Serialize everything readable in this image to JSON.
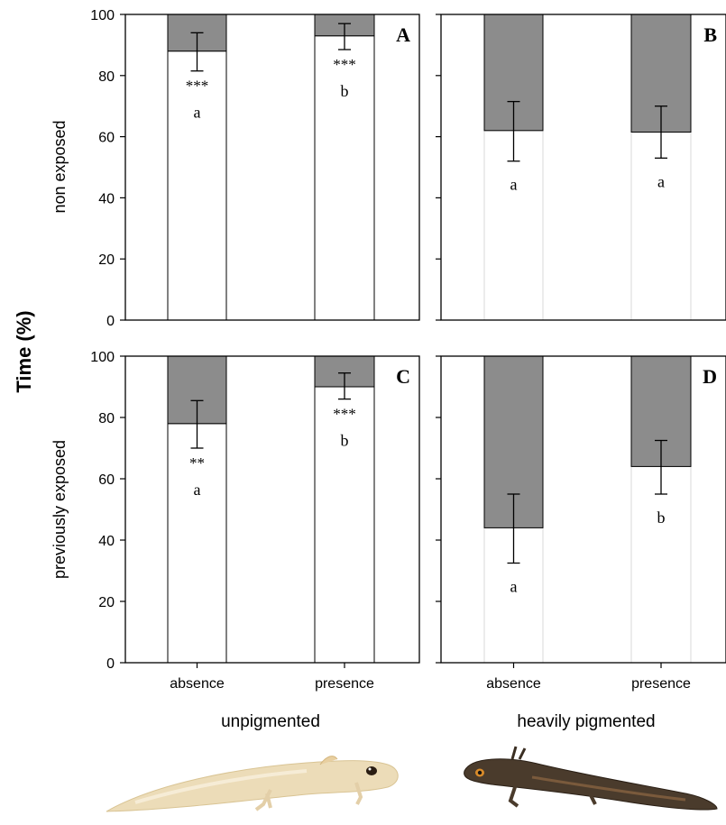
{
  "ylabel": "Time (%)",
  "row_labels": [
    "non exposed",
    "previously exposed"
  ],
  "group_labels": [
    "unpigmented",
    "heavily pigmented"
  ],
  "icons": [
    "unpigmented-larva-photo",
    "pigmented-larva-photo"
  ],
  "chart_data": [
    {
      "type": "bar",
      "panel": "A",
      "row": "non exposed",
      "group": "unpigmented",
      "categories": [
        "absence",
        "presence"
      ],
      "values": [
        88,
        93
      ],
      "err_low": [
        81.5,
        88.5
      ],
      "err_high": [
        94,
        97
      ],
      "stars": [
        "***",
        "***"
      ],
      "letters": [
        "a",
        "b"
      ],
      "ylim": [
        0,
        100
      ],
      "yticks": [
        0,
        20,
        40,
        60,
        80,
        100
      ],
      "bar_colors": [
        "#8c8c8c",
        "#ffffff"
      ]
    },
    {
      "type": "bar",
      "panel": "B",
      "row": "non exposed",
      "group": "heavily pigmented",
      "categories": [
        "absence",
        "presence"
      ],
      "values": [
        62,
        61.5
      ],
      "err_low": [
        52,
        53
      ],
      "err_high": [
        71.5,
        70
      ],
      "stars": [
        "",
        ""
      ],
      "letters": [
        "a",
        "a"
      ],
      "ylim": [
        0,
        100
      ],
      "yticks": [
        0,
        20,
        40,
        60,
        80,
        100
      ],
      "bar_colors": [
        "#8c8c8c",
        "#ffffff"
      ]
    },
    {
      "type": "bar",
      "panel": "C",
      "row": "previously exposed",
      "group": "unpigmented",
      "categories": [
        "absence",
        "presence"
      ],
      "values": [
        78,
        90
      ],
      "err_low": [
        70,
        86
      ],
      "err_high": [
        85.5,
        94.5
      ],
      "stars": [
        "**",
        "***"
      ],
      "letters": [
        "a",
        "b"
      ],
      "ylim": [
        0,
        100
      ],
      "yticks": [
        0,
        20,
        40,
        60,
        80,
        100
      ],
      "bar_colors": [
        "#8c8c8c",
        "#ffffff"
      ]
    },
    {
      "type": "bar",
      "panel": "D",
      "row": "previously exposed",
      "group": "heavily pigmented",
      "categories": [
        "absence",
        "presence"
      ],
      "values": [
        44,
        64
      ],
      "err_low": [
        32.5,
        55
      ],
      "err_high": [
        55,
        72.5
      ],
      "stars": [
        "",
        ""
      ],
      "letters": [
        "a",
        "b"
      ],
      "ylim": [
        0,
        100
      ],
      "yticks": [
        0,
        20,
        40,
        60,
        80,
        100
      ],
      "bar_colors": [
        "#8c8c8c",
        "#ffffff"
      ]
    }
  ]
}
